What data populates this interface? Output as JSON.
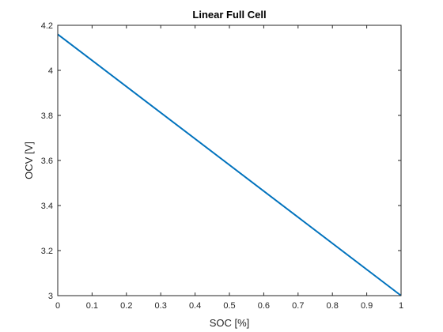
{
  "chart_data": {
    "type": "line",
    "title": "Linear Full Cell",
    "xlabel": "SOC [%]",
    "ylabel": "OCV [V]",
    "xlim": [
      0,
      1
    ],
    "ylim": [
      3,
      4.2
    ],
    "xticks": [
      0,
      0.1,
      0.2,
      0.3,
      0.4,
      0.5,
      0.6,
      0.7,
      0.8,
      0.9,
      1
    ],
    "xtick_labels": [
      "0",
      "0.1",
      "0.2",
      "0.3",
      "0.4",
      "0.5",
      "0.6",
      "0.7",
      "0.8",
      "0.9",
      "1"
    ],
    "yticks": [
      3,
      3.2,
      3.4,
      3.6,
      3.8,
      4,
      4.2
    ],
    "ytick_labels": [
      "3",
      "3.2",
      "3.4",
      "3.6",
      "3.8",
      "4",
      "4.2"
    ],
    "grid": false,
    "series": [
      {
        "color": "#0072BD",
        "x": [
          0,
          1
        ],
        "y": [
          4.16,
          3.0
        ]
      }
    ]
  }
}
